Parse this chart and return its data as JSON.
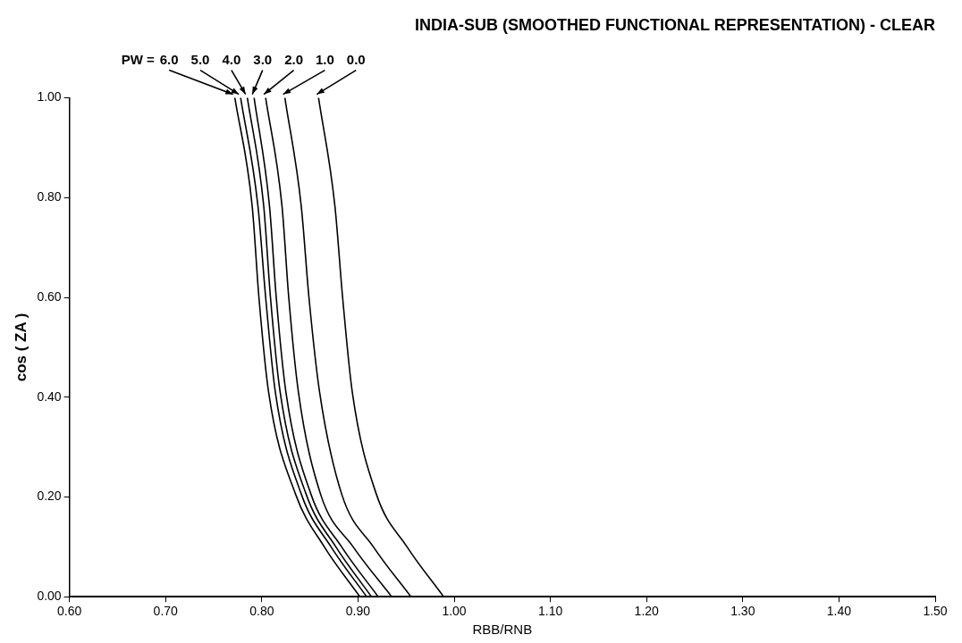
{
  "chart_data": {
    "type": "line",
    "title": "INDIA-SUB (SMOOTHED FUNCTIONAL REPRESENTATION) - CLEAR",
    "xlabel": "RBB/RNB",
    "ylabel": "cos ( ZA )",
    "legend_title": "PW =",
    "series": [
      {
        "name": "6.0",
        "color": "#000000",
        "x": [
          0.772,
          0.79,
          0.797,
          0.807,
          0.835,
          0.865,
          0.902
        ],
        "values": [
          1.0,
          0.783,
          0.6,
          0.411,
          0.206,
          0.1,
          0.0
        ]
      },
      {
        "name": "5.0",
        "color": "#000000",
        "x": [
          0.778,
          0.796,
          0.804,
          0.814,
          0.841,
          0.872,
          0.909
        ],
        "values": [
          1.0,
          0.783,
          0.6,
          0.411,
          0.206,
          0.1,
          0.0
        ]
      },
      {
        "name": "4.0",
        "color": "#000000",
        "x": [
          0.785,
          0.802,
          0.809,
          0.819,
          0.846,
          0.877,
          0.914
        ],
        "values": [
          1.0,
          0.783,
          0.6,
          0.411,
          0.206,
          0.1,
          0.0
        ]
      },
      {
        "name": "3.0",
        "color": "#000000",
        "x": [
          0.792,
          0.808,
          0.815,
          0.825,
          0.851,
          0.883,
          0.921
        ],
        "values": [
          1.0,
          0.783,
          0.6,
          0.411,
          0.206,
          0.1,
          0.0
        ]
      },
      {
        "name": "2.0",
        "color": "#000000",
        "x": [
          0.804,
          0.821,
          0.828,
          0.838,
          0.861,
          0.895,
          0.935
        ],
        "values": [
          1.0,
          0.783,
          0.6,
          0.411,
          0.206,
          0.1,
          0.0
        ]
      },
      {
        "name": "1.0",
        "color": "#000000",
        "x": [
          0.824,
          0.841,
          0.849,
          0.86,
          0.883,
          0.916,
          0.955
        ],
        "values": [
          1.0,
          0.783,
          0.6,
          0.411,
          0.206,
          0.1,
          0.0
        ]
      },
      {
        "name": "0.0",
        "color": "#000000",
        "x": [
          0.859,
          0.876,
          0.884,
          0.894,
          0.919,
          0.951,
          0.989
        ],
        "values": [
          1.0,
          0.783,
          0.6,
          0.411,
          0.206,
          0.1,
          0.0
        ]
      }
    ],
    "xlim": [
      0.6,
      1.5
    ],
    "ylim": [
      0,
      1
    ],
    "xticks": [
      {
        "value": 0.6,
        "label": "0.60"
      },
      {
        "value": 0.7,
        "label": "0.70"
      },
      {
        "value": 0.8,
        "label": "0.80"
      },
      {
        "value": 0.9,
        "label": "0.90"
      },
      {
        "value": 1.0,
        "label": "1.00"
      },
      {
        "value": 1.1,
        "label": "1.10"
      },
      {
        "value": 1.2,
        "label": "1.20"
      },
      {
        "value": 1.3,
        "label": "1.30"
      },
      {
        "value": 1.4,
        "label": "1.40"
      },
      {
        "value": 1.5,
        "label": "1.50"
      }
    ],
    "yticks": [
      {
        "value": 0,
        "label": "0.00"
      },
      {
        "value": 0.2,
        "label": "0.20"
      },
      {
        "value": 0.4,
        "label": "0.40"
      },
      {
        "value": 0.6,
        "label": "0.60"
      },
      {
        "value": 0.8,
        "label": "0.80"
      },
      {
        "value": 1.0,
        "label": "1.00"
      }
    ],
    "grid": false,
    "legend": false,
    "marker": "none",
    "line_style": "solid"
  }
}
